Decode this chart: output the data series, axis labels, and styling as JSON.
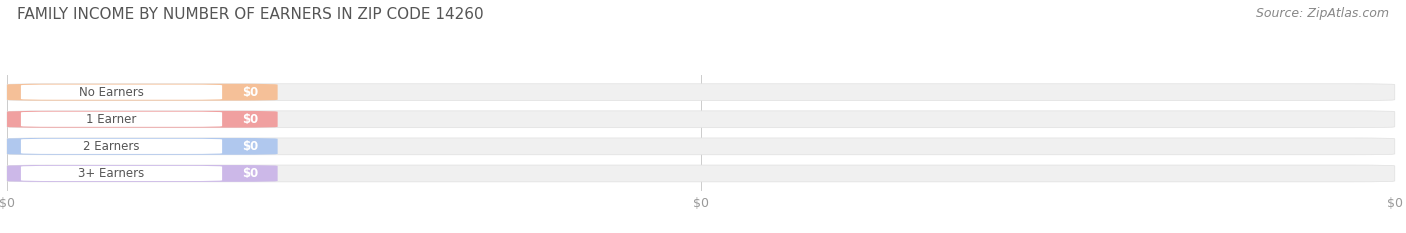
{
  "title": "FAMILY INCOME BY NUMBER OF EARNERS IN ZIP CODE 14260",
  "source": "Source: ZipAtlas.com",
  "categories": [
    "No Earners",
    "1 Earner",
    "2 Earners",
    "3+ Earners"
  ],
  "values": [
    0,
    0,
    0,
    0
  ],
  "bar_colors": [
    "#f5c098",
    "#f0a0a0",
    "#b0c8ee",
    "#ccb8e8"
  ],
  "bar_bg_color": "#f0f0f0",
  "bar_label_text": [
    "$0",
    "$0",
    "$0",
    "$0"
  ],
  "background_color": "#ffffff",
  "title_fontsize": 11,
  "source_fontsize": 9,
  "grid_color": "#cccccc",
  "tick_label_color": "#999999",
  "category_text_color": "#555555"
}
